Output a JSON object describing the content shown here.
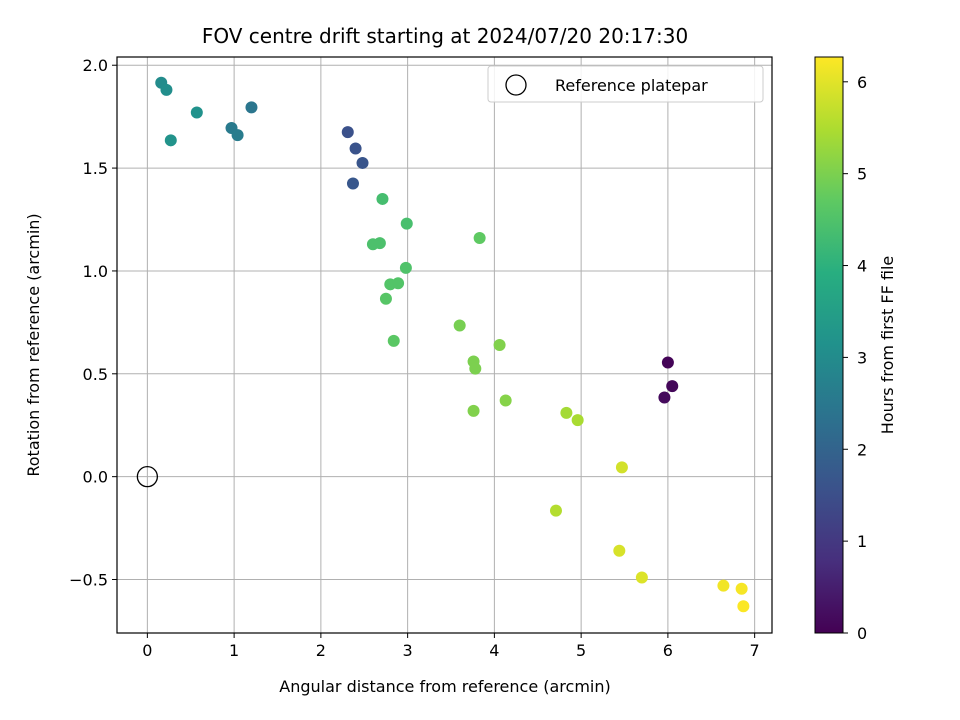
{
  "chart_data": {
    "type": "scatter",
    "title": "FOV centre drift starting at 2024/07/20 20:17:30",
    "xlabel": "Angular distance from reference (arcmin)",
    "ylabel": "Rotation from reference (arcmin)",
    "xlim": [
      -0.35,
      7.2
    ],
    "ylim": [
      -0.76,
      2.04
    ],
    "xticks": [
      "0",
      "1",
      "2",
      "3",
      "4",
      "5",
      "6",
      "7"
    ],
    "xtick_values": [
      0,
      1,
      2,
      3,
      4,
      5,
      6,
      7
    ],
    "yticks": [
      "−0.5",
      "0.0",
      "0.5",
      "1.0",
      "1.5",
      "2.0"
    ],
    "ytick_values": [
      -0.5,
      0.0,
      0.5,
      1.0,
      1.5,
      2.0
    ],
    "grid": true,
    "legend": {
      "placement": "top-right",
      "entries": [
        "Reference platepar"
      ]
    },
    "reference_point": {
      "x": 0,
      "y": 0
    },
    "colorbar": {
      "label": "Hours from first FF file",
      "range": [
        0,
        6.27
      ],
      "ticks": [
        "0",
        "1",
        "2",
        "3",
        "4",
        "5",
        "6"
      ],
      "tick_values": [
        0,
        1,
        2,
        3,
        4,
        5,
        6
      ],
      "colormap": "viridis"
    },
    "points": [
      {
        "x": 6.0,
        "y": 0.555,
        "hours": 0.05
      },
      {
        "x": 6.05,
        "y": 0.44,
        "hours": 0.1
      },
      {
        "x": 5.96,
        "y": 0.385,
        "hours": 0.15
      },
      {
        "x": 2.31,
        "y": 1.675,
        "hours": 1.55
      },
      {
        "x": 2.4,
        "y": 1.595,
        "hours": 1.6
      },
      {
        "x": 2.48,
        "y": 1.525,
        "hours": 1.65
      },
      {
        "x": 2.37,
        "y": 1.425,
        "hours": 1.7
      },
      {
        "x": 1.2,
        "y": 1.795,
        "hours": 2.45
      },
      {
        "x": 0.97,
        "y": 1.695,
        "hours": 2.55
      },
      {
        "x": 1.04,
        "y": 1.66,
        "hours": 2.6
      },
      {
        "x": 0.16,
        "y": 1.915,
        "hours": 3.0
      },
      {
        "x": 0.22,
        "y": 1.88,
        "hours": 3.05
      },
      {
        "x": 0.57,
        "y": 1.77,
        "hours": 3.15
      },
      {
        "x": 0.27,
        "y": 1.635,
        "hours": 3.2
      },
      {
        "x": 2.71,
        "y": 1.35,
        "hours": 4.35
      },
      {
        "x": 2.99,
        "y": 1.23,
        "hours": 4.4
      },
      {
        "x": 2.6,
        "y": 1.13,
        "hours": 4.45
      },
      {
        "x": 2.68,
        "y": 1.135,
        "hours": 4.45
      },
      {
        "x": 2.98,
        "y": 1.015,
        "hours": 4.5
      },
      {
        "x": 2.8,
        "y": 0.935,
        "hours": 4.55
      },
      {
        "x": 2.89,
        "y": 0.94,
        "hours": 4.55
      },
      {
        "x": 2.75,
        "y": 0.865,
        "hours": 4.6
      },
      {
        "x": 2.84,
        "y": 0.66,
        "hours": 4.65
      },
      {
        "x": 3.83,
        "y": 1.16,
        "hours": 4.7
      },
      {
        "x": 3.6,
        "y": 0.735,
        "hours": 4.95
      },
      {
        "x": 3.76,
        "y": 0.56,
        "hours": 5.0
      },
      {
        "x": 3.78,
        "y": 0.525,
        "hours": 5.0
      },
      {
        "x": 4.06,
        "y": 0.64,
        "hours": 5.05
      },
      {
        "x": 3.76,
        "y": 0.32,
        "hours": 5.05
      },
      {
        "x": 4.13,
        "y": 0.37,
        "hours": 5.1
      },
      {
        "x": 4.83,
        "y": 0.31,
        "hours": 5.4
      },
      {
        "x": 4.96,
        "y": 0.275,
        "hours": 5.45
      },
      {
        "x": 4.71,
        "y": -0.165,
        "hours": 5.55
      },
      {
        "x": 5.47,
        "y": 0.045,
        "hours": 5.85
      },
      {
        "x": 5.44,
        "y": -0.36,
        "hours": 5.9
      },
      {
        "x": 5.7,
        "y": -0.49,
        "hours": 5.95
      },
      {
        "x": 6.64,
        "y": -0.53,
        "hours": 6.15
      },
      {
        "x": 6.85,
        "y": -0.545,
        "hours": 6.2
      },
      {
        "x": 6.87,
        "y": -0.63,
        "hours": 6.25
      }
    ]
  }
}
